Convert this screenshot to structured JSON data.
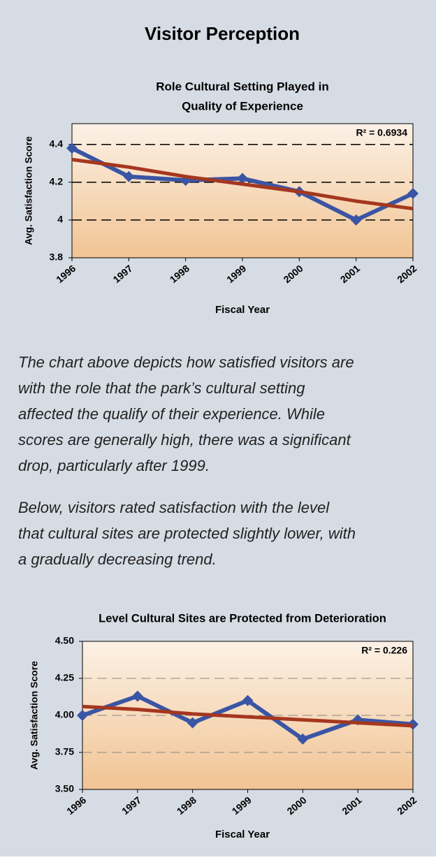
{
  "title": "Visitor Perception",
  "paragraphs": [
    [
      "The chart above depicts how satisfied visitors are",
      "with the role that the park’s cultural setting",
      "affected  the qualify of their experience.  While",
      "scores are generally high, there was a significant",
      "drop, particularly after 1999."
    ],
    [
      "Below, visitors rated satisfaction with the level",
      "that cultural sites are protected slightly lower, with",
      "a gradually decreasing trend."
    ]
  ],
  "chart_data": [
    {
      "type": "line",
      "title": [
        "Role Cultural Setting Played in",
        "Quality of Experience"
      ],
      "xlabel": "Fiscal Year",
      "ylabel": "Avg. Satisfaction Score",
      "annotation": "R² = 0.6934",
      "categories": [
        "1996",
        "1997",
        "1998",
        "1999",
        "2000",
        "2001",
        "2002"
      ],
      "series": [
        {
          "color": "#3a55a4",
          "values": [
            4.38,
            4.23,
            4.21,
            4.22,
            4.15,
            4.0,
            4.14
          ]
        },
        {
          "color": "#a5371f",
          "values": [
            4.32,
            4.28,
            4.23,
            4.19,
            4.15,
            4.1,
            4.06
          ]
        }
      ],
      "ylim": [
        3.8,
        4.51
      ],
      "yticks": [
        3.8,
        4,
        4.2,
        4.4
      ],
      "grid": true,
      "grid_color": "#000000"
    },
    {
      "type": "line",
      "title": [
        "Level Cultural Sites are Protected from Deterioration"
      ],
      "xlabel": "Fiscal Year",
      "ylabel": "Avg. Satisfaction Score",
      "annotation": "R² = 0.226",
      "categories": [
        "1996",
        "1997",
        "1998",
        "1999",
        "2000",
        "2001",
        "2002"
      ],
      "series": [
        {
          "color": "#3a55a4",
          "values": [
            4.0,
            4.13,
            3.95,
            4.1,
            3.84,
            3.97,
            3.94
          ]
        },
        {
          "color": "#a5371f",
          "values": [
            4.06,
            4.04,
            4.01,
            3.99,
            3.97,
            3.95,
            3.93
          ]
        }
      ],
      "ylim": [
        3.5,
        4.5
      ],
      "yticks": [
        {
          "value": 3.5,
          "label": "3.50"
        },
        {
          "value": 3.75,
          "label": "3.75"
        },
        {
          "value": 4.0,
          "label": "4.00"
        },
        {
          "value": 4.25,
          "label": "4.25"
        },
        {
          "value": 4.5,
          "label": "4.50"
        }
      ],
      "grid": true,
      "grid_color": "#888888"
    }
  ]
}
